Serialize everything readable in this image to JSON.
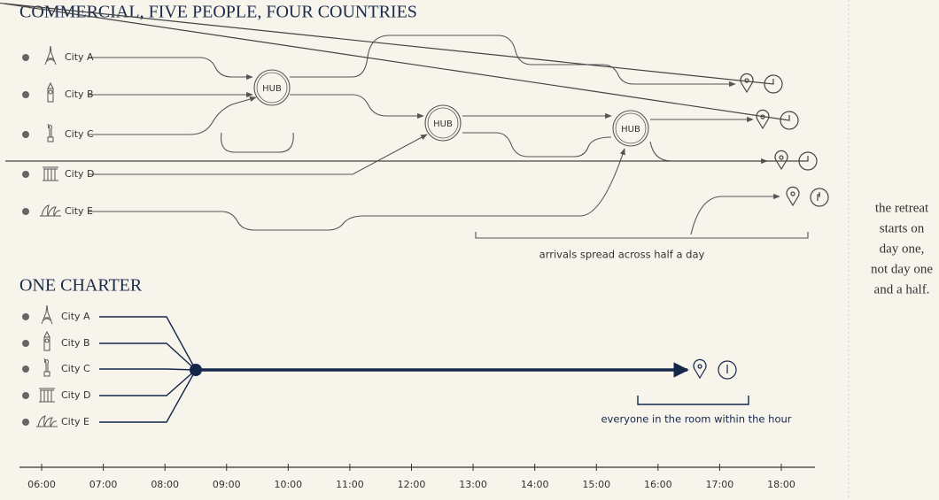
{
  "commercial": {
    "title": "COMMERCIAL, FIVE PEOPLE, FOUR COUNTRIES",
    "cities": [
      "City A",
      "City B",
      "City C",
      "City D",
      "City E"
    ],
    "hubs": [
      "HUB",
      "HUB",
      "HUB"
    ],
    "annotation": "arrivals spread across half a day"
  },
  "charter": {
    "title": "ONE CHARTER",
    "cities": [
      "City A",
      "City B",
      "City C",
      "City D",
      "City E"
    ],
    "annotation": "everyone in the room within the hour"
  },
  "timeline": {
    "labels": [
      "06:00",
      "07:00",
      "08:00",
      "09:00",
      "10:00",
      "11:00",
      "12:00",
      "13:00",
      "14:00",
      "15:00",
      "16:00",
      "17:00",
      "18:00"
    ]
  },
  "side_note": {
    "lines": [
      "the retreat",
      "starts on",
      "day one,",
      "not day one",
      "and a half."
    ]
  }
}
